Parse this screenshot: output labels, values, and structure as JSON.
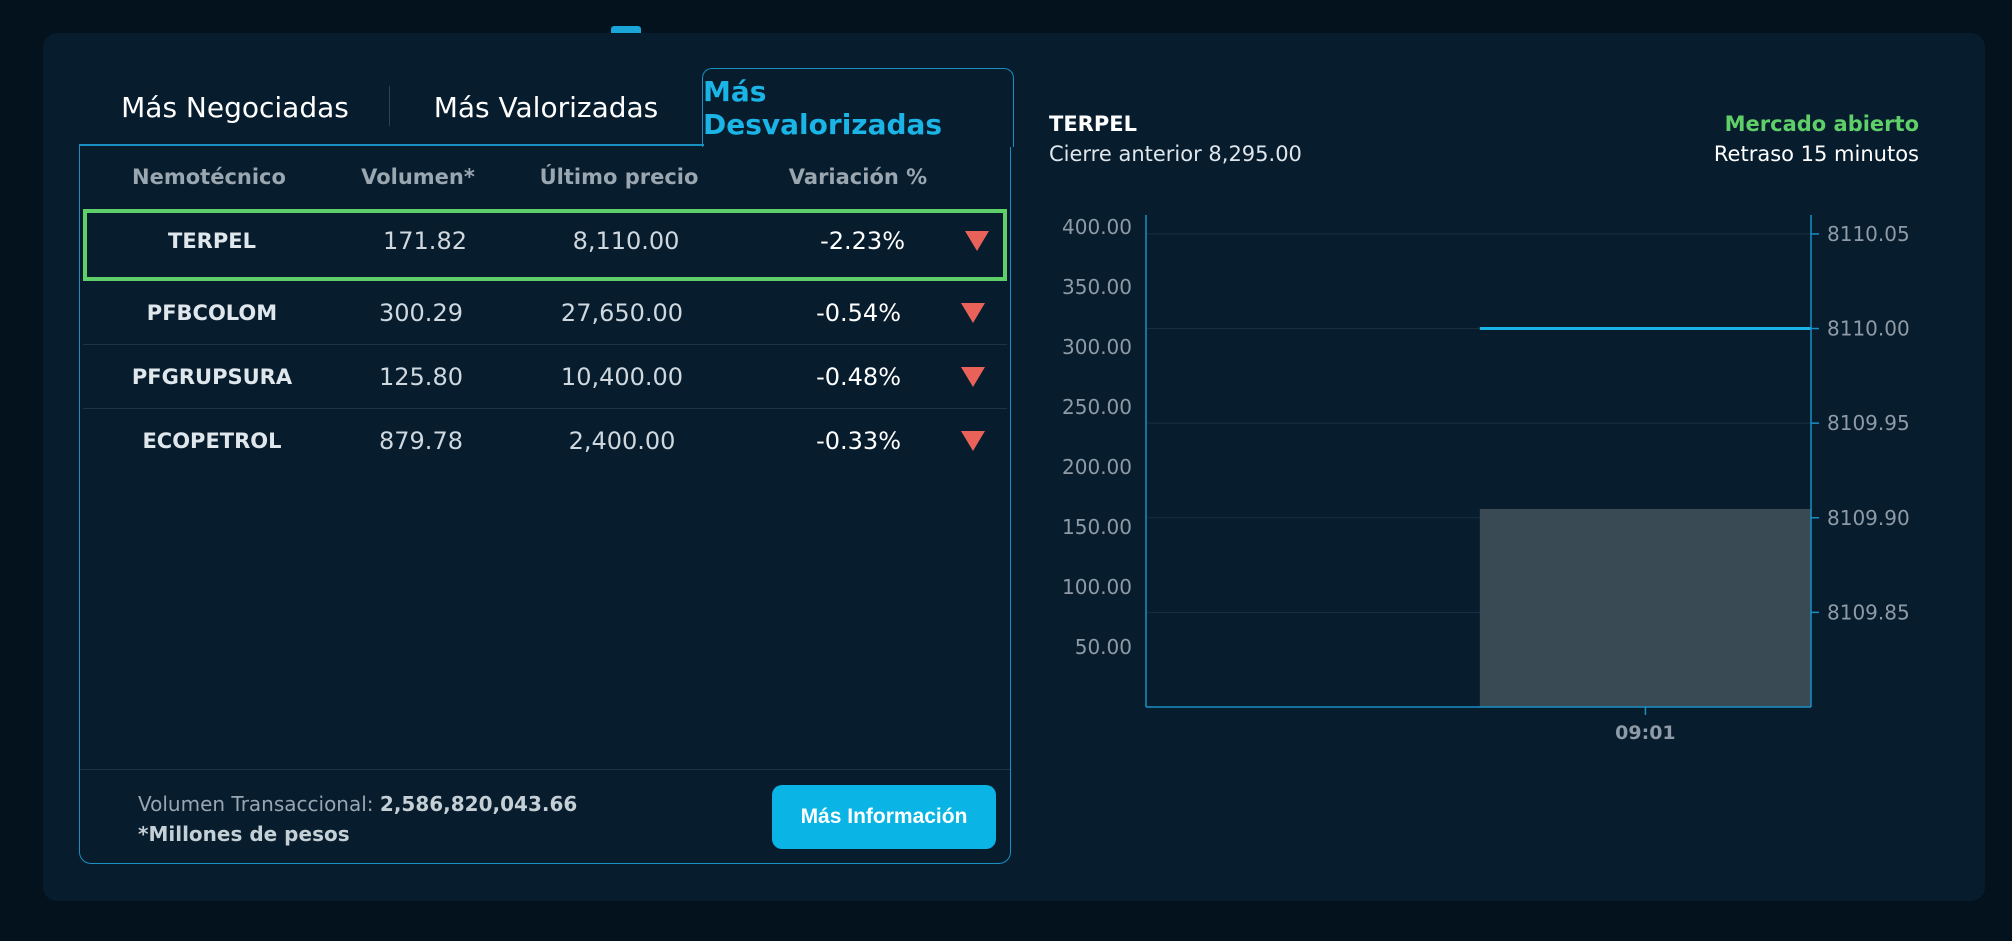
{
  "tabs": [
    {
      "label": "Más Negociadas",
      "active": false
    },
    {
      "label": "Más Valorizadas",
      "active": false
    },
    {
      "label": "Más Desvalorizadas",
      "active": true
    }
  ],
  "table": {
    "headers": [
      "Nemotécnico",
      "Volumen*",
      "Último precio",
      "Variación %"
    ],
    "rows": [
      {
        "symbol": "TERPEL",
        "volume": "171.82",
        "price": "8,110.00",
        "variation": "-2.23%",
        "trend": "down",
        "selected": true
      },
      {
        "symbol": "PFBCOLOM",
        "volume": "300.29",
        "price": "27,650.00",
        "variation": "-0.54%",
        "trend": "down",
        "selected": false
      },
      {
        "symbol": "PFGRUPSURA",
        "volume": "125.80",
        "price": "10,400.00",
        "variation": "-0.48%",
        "trend": "down",
        "selected": false
      },
      {
        "symbol": "ECOPETROL",
        "volume": "879.78",
        "price": "2,400.00",
        "variation": "-0.33%",
        "trend": "down",
        "selected": false
      }
    ],
    "trend_icon": "triangle-down-icon",
    "trend_color": "#e8625a"
  },
  "footer": {
    "volume_label": "Volumen Transaccional:",
    "volume_value": "2,586,820,043.66",
    "note": "*Millones de pesos",
    "more_button": "Más Información"
  },
  "detail": {
    "symbol": "TERPEL",
    "previous_close": "Cierre anterior 8,295.00",
    "market_status": "Mercado abierto",
    "delay": "Retraso 15 minutos",
    "status_color": "#5fcf6a"
  },
  "chart_data": {
    "type": "bar",
    "categories": [
      "09:01"
    ],
    "left_axis": {
      "ticks": [
        "50.00",
        "100.00",
        "150.00",
        "200.00",
        "250.00",
        "300.00",
        "350.00",
        "400.00"
      ],
      "min": 0,
      "max": 410
    },
    "right_axis": {
      "ticks": [
        "8109.85",
        "8109.90",
        "8109.95",
        "8110.00",
        "8110.05"
      ],
      "min": 8109.8,
      "max": 8110.06
    },
    "series": [
      {
        "kind": "bar",
        "axis": "left",
        "x_from": "09:01",
        "values": [
          165
        ],
        "color": "#3a4a55"
      },
      {
        "kind": "line",
        "axis": "right",
        "x_from": "09:01",
        "values": [
          8110.0
        ],
        "color": "#1ab4e6"
      }
    ],
    "grid": true
  }
}
